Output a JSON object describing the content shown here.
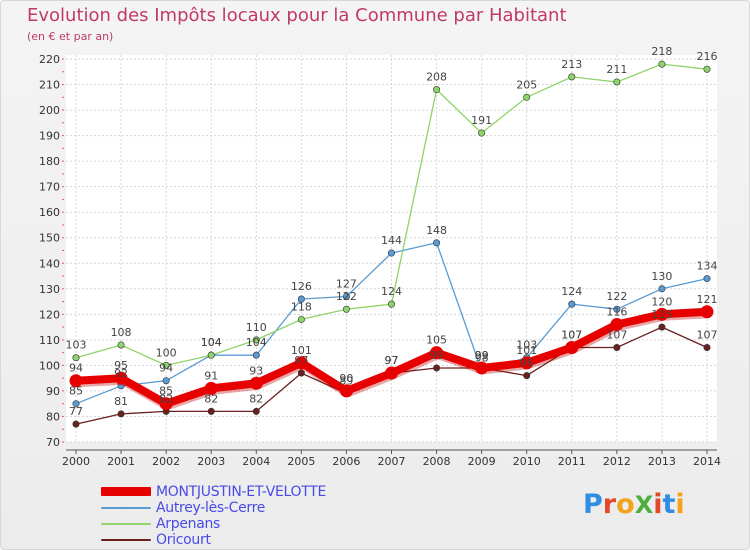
{
  "title": "Evolution des Impôts locaux pour la Commune par Habitant",
  "subtitle": "(en € et par an)",
  "brand": {
    "name": "ProXiti",
    "letters": [
      "P",
      "r",
      "o",
      "X",
      "i",
      "t",
      "i"
    ],
    "colors": [
      "#2f8de4",
      "#e04a2a",
      "#f2a31b",
      "#4caf3e",
      "#e04a2a",
      "#2f8de4",
      "#f2a31b"
    ]
  },
  "chart_data": {
    "type": "line",
    "title": "Evolution des Impôts locaux pour la Commune par Habitant",
    "subtitle": "(en € et par an)",
    "xlabel": "",
    "ylabel": "",
    "ylim": [
      70,
      220
    ],
    "yticks": [
      70,
      80,
      90,
      100,
      110,
      120,
      130,
      140,
      150,
      160,
      170,
      180,
      190,
      200,
      210,
      220
    ],
    "x": [
      "2000",
      "2001",
      "2002",
      "2003",
      "2004",
      "2005",
      "2006",
      "2007",
      "2008",
      "2009",
      "2010",
      "2011",
      "2012",
      "2013",
      "2014"
    ],
    "legend_position": "bottom-left",
    "grid": true,
    "series": [
      {
        "name": "MONTJUSTIN-ET-VELOTTE",
        "color": "#e60000",
        "emphasis": true,
        "values": [
          94,
          95,
          85,
          91,
          93,
          101,
          90,
          97,
          105,
          99,
          101,
          107,
          116,
          120,
          121
        ],
        "labels": [
          "94",
          "95",
          "85",
          "91",
          "93",
          "101",
          "90",
          "97",
          "105",
          "99",
          "101",
          "107",
          "116",
          "120",
          "121"
        ]
      },
      {
        "name": "Autrey-lès-Cerre",
        "color": "#5a9bd3",
        "values": [
          85,
          92,
          94,
          104,
          104,
          126,
          127,
          144,
          148,
          98,
          103,
          124,
          122,
          130,
          134
        ],
        "labels": [
          "85",
          "92",
          "94",
          "104",
          "104",
          "126",
          "127",
          "144",
          "148",
          "98",
          "103",
          "124",
          "122",
          "130",
          "134"
        ]
      },
      {
        "name": "Arpenans",
        "color": "#8fd46a",
        "values": [
          103,
          108,
          100,
          104,
          110,
          118,
          122,
          124,
          208,
          191,
          205,
          213,
          211,
          218,
          216
        ],
        "labels": [
          "103",
          "108",
          "100",
          "104",
          "110",
          "118",
          "122",
          "124",
          "208",
          "191",
          "205",
          "213",
          "211",
          "218",
          "216"
        ]
      },
      {
        "name": "Oricourt",
        "color": "#6b2020",
        "values": [
          77,
          81,
          82,
          82,
          82,
          97,
          89,
          97,
          99,
          99,
          96,
          107,
          107,
          115,
          107
        ],
        "labels": [
          "77",
          "81",
          "82",
          "82",
          "82",
          "97",
          "89",
          "97",
          "99",
          "99",
          "96",
          "107",
          "107",
          "115",
          "107"
        ]
      }
    ]
  }
}
